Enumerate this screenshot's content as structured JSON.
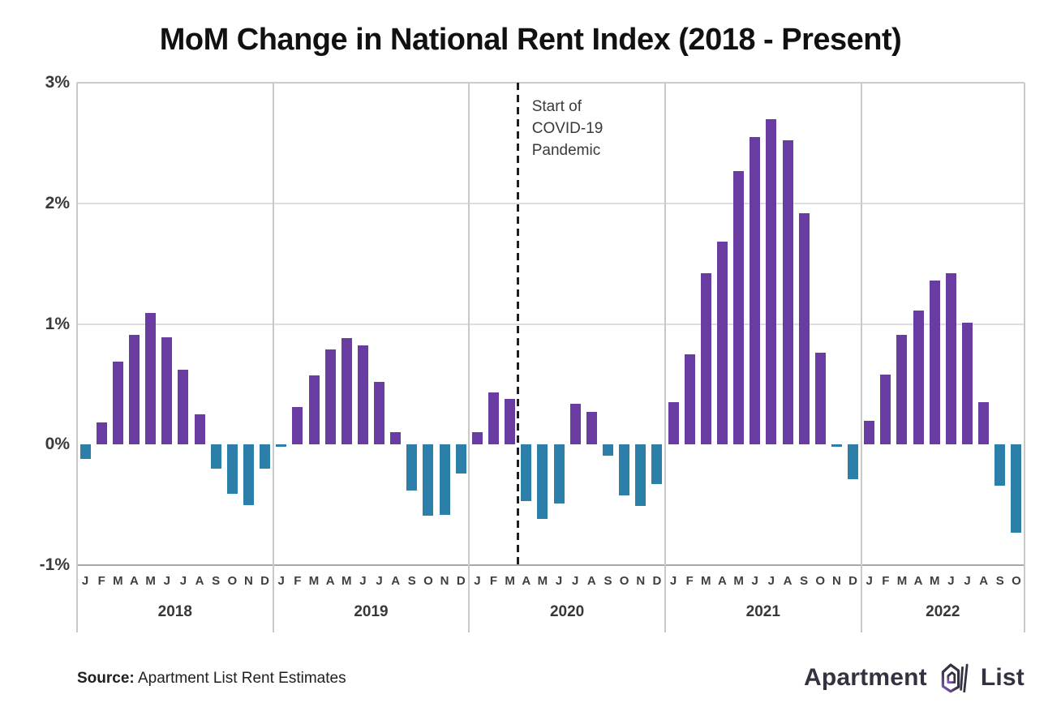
{
  "title": "MoM Change in National Rent Index (2018 - Present)",
  "annotation": {
    "lines": [
      "Start of",
      "COVID-19",
      "Pandemic"
    ]
  },
  "source": {
    "label": "Source:",
    "text": "Apartment List Rent Estimates"
  },
  "logo": {
    "word1": "Apartment",
    "word2": "List"
  },
  "colors": {
    "positive_bar": "#693CA1",
    "negative_bar": "#2C7FA8",
    "gridline": "#dddddd",
    "axis_text": "#3a3a3a",
    "dashed_line": "#1e1e1e"
  },
  "chart_data": {
    "type": "bar",
    "title": "MoM Change in National Rent Index (2018 - Present)",
    "xlabel": "",
    "ylabel": "",
    "ylim": [
      -1,
      3
    ],
    "y_ticks": [
      {
        "label": "3%",
        "value": 3
      },
      {
        "label": "2%",
        "value": 2
      },
      {
        "label": "1%",
        "value": 1
      },
      {
        "label": "0%",
        "value": 0
      },
      {
        "label": "-1%",
        "value": -1
      }
    ],
    "grid_values": [
      3,
      2,
      1,
      -1
    ],
    "legend": "none",
    "bar_color_positive": "#693CA1",
    "bar_color_negative": "#2C7FA8",
    "annotation": {
      "text": "Start of COVID-19 Pandemic",
      "line_after_global_month_index": 27
    },
    "years": [
      {
        "year": "2018",
        "months": [
          "J",
          "F",
          "M",
          "A",
          "M",
          "J",
          "J",
          "A",
          "S",
          "O",
          "N",
          "D"
        ],
        "values": [
          -0.12,
          0.18,
          0.69,
          0.91,
          1.09,
          0.89,
          0.62,
          0.25,
          -0.2,
          -0.41,
          -0.5,
          -0.2
        ]
      },
      {
        "year": "2019",
        "months": [
          "J",
          "F",
          "M",
          "A",
          "M",
          "J",
          "J",
          "A",
          "S",
          "O",
          "N",
          "D"
        ],
        "values": [
          -0.02,
          0.31,
          0.57,
          0.79,
          0.88,
          0.82,
          0.52,
          0.1,
          -0.38,
          -0.59,
          -0.58,
          -0.24
        ]
      },
      {
        "year": "2020",
        "months": [
          "J",
          "F",
          "M",
          "A",
          "M",
          "J",
          "J",
          "A",
          "S",
          "O",
          "N",
          "D"
        ],
        "values": [
          0.1,
          0.43,
          0.38,
          -0.47,
          -0.62,
          -0.49,
          0.34,
          0.27,
          -0.09,
          -0.42,
          -0.51,
          -0.33
        ]
      },
      {
        "year": "2021",
        "months": [
          "J",
          "F",
          "M",
          "A",
          "M",
          "J",
          "J",
          "A",
          "S",
          "O",
          "N",
          "D"
        ],
        "values": [
          0.35,
          0.75,
          1.42,
          1.68,
          2.27,
          2.55,
          2.7,
          2.52,
          1.92,
          0.76,
          -0.02,
          -0.29
        ]
      },
      {
        "year": "2022",
        "months": [
          "J",
          "F",
          "M",
          "A",
          "M",
          "J",
          "J",
          "A",
          "S",
          "O"
        ],
        "values": [
          0.2,
          0.58,
          0.91,
          1.11,
          1.36,
          1.42,
          1.01,
          0.35,
          -0.34,
          -0.73
        ]
      }
    ]
  }
}
